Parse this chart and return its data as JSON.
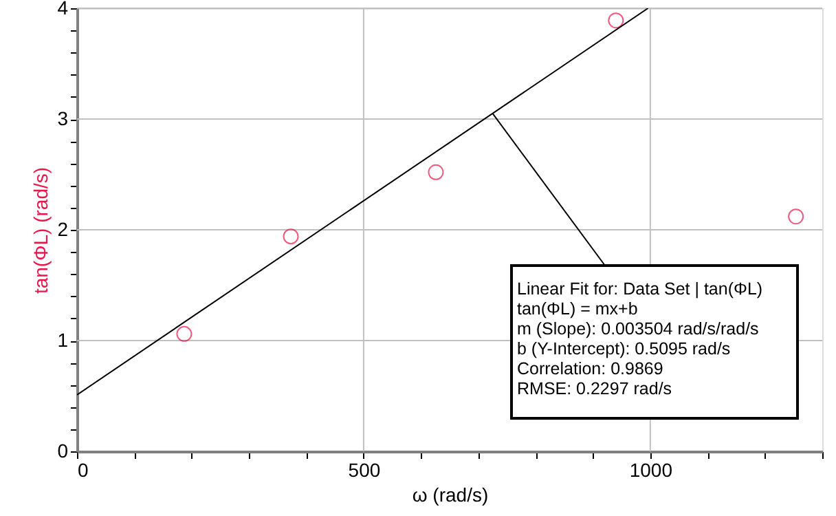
{
  "chart_data": {
    "type": "scatter",
    "xlabel": "ω (rad/s)",
    "ylabel": "tan(ΦL) (rad/s)",
    "series": [
      {
        "type": "scatter",
        "color": "#e8174a",
        "marker": "circle",
        "x": [
          187,
          373,
          626,
          940,
          1254
        ],
        "values": [
          1.06,
          1.94,
          2.52,
          3.89,
          2.12
        ]
      },
      {
        "type": "line",
        "color": "#000000",
        "marker": "none",
        "line_style": "solid",
        "x": [
          0,
          996
        ],
        "values": [
          0.51,
          4.0
        ]
      }
    ],
    "xlim": [
      0,
      1300
    ],
    "xticks": [
      0,
      {
        "value": 100,
        "label": null
      },
      {
        "value": 200,
        "label": null
      },
      {
        "value": 300,
        "label": null
      },
      {
        "value": 400,
        "label": null
      },
      500,
      {
        "value": 600,
        "label": null
      },
      {
        "value": 700,
        "label": null
      },
      {
        "value": 800,
        "label": null
      },
      {
        "value": 900,
        "label": null
      },
      1000,
      {
        "value": 1100,
        "label": null
      },
      {
        "value": 1200,
        "label": null
      },
      {
        "value": 1300,
        "label": null
      }
    ],
    "ylim": [
      0,
      4
    ],
    "yticks": [
      0,
      {
        "value": 0.2,
        "label": null
      },
      {
        "value": 0.4,
        "label": null
      },
      {
        "value": 0.6,
        "label": null
      },
      {
        "value": 0.8,
        "label": null
      },
      1,
      {
        "value": 1.2,
        "label": null
      },
      {
        "value": 1.4,
        "label": null
      },
      {
        "value": 1.6,
        "label": null
      },
      {
        "value": 1.8,
        "label": null
      },
      2,
      {
        "value": 2.2,
        "label": null
      },
      {
        "value": 2.4,
        "label": null
      },
      {
        "value": 2.6,
        "label": null
      },
      {
        "value": 2.8,
        "label": null
      },
      3,
      {
        "value": 3.2,
        "label": null
      },
      {
        "value": 3.4,
        "label": null
      },
      {
        "value": 3.6,
        "label": null
      },
      {
        "value": 3.8,
        "label": null
      },
      4
    ],
    "grid": true,
    "annotations": [
      {
        "text": "Linear Fit for: Data Set | tan(ΦL)",
        "x": 725,
        "y": 3.05
      },
      "tan(ΦL) = mx+b",
      "m (Slope): 0.003504 rad/s/rad/s",
      "b (Y-Intercept): 0.5095 rad/s",
      "Correlation: 0.9869",
      "RMSE: 0.2297 rad/s"
    ]
  }
}
